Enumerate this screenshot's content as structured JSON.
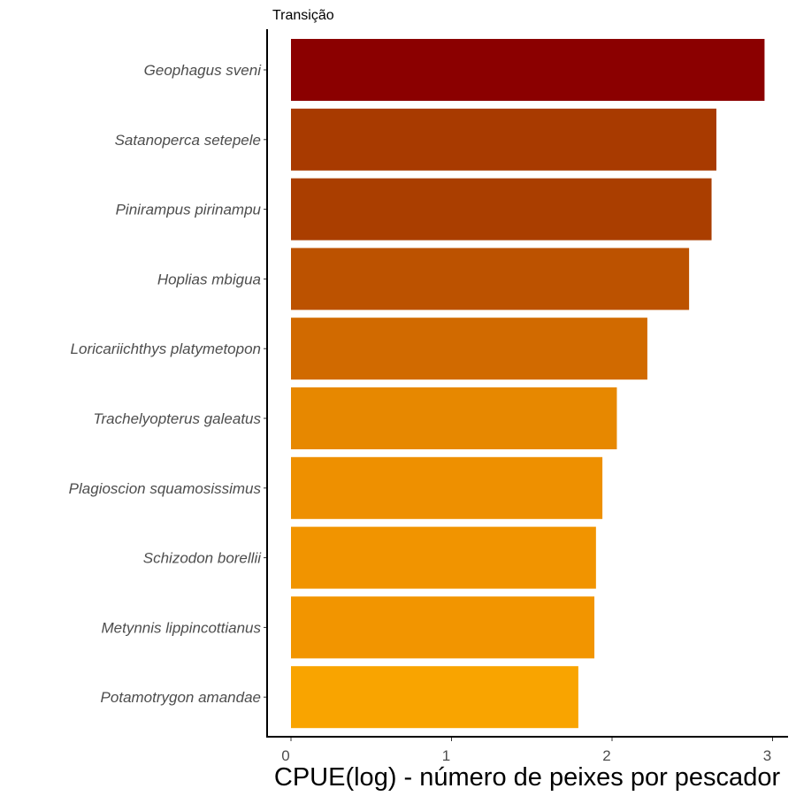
{
  "chart_data": {
    "type": "bar",
    "orientation": "horizontal",
    "title": "Transição",
    "xlabel": "CPUE(log) - número de peixes por pescador",
    "ylabel": "",
    "xlim": [
      0,
      3.05
    ],
    "xticks": [
      "0",
      "1",
      "2",
      "3"
    ],
    "grid": false,
    "legend": "none",
    "categories": [
      "Geophagus sveni",
      "Satanoperca setepele",
      "Pinirampus pirinampu",
      "Hoplias mbigua",
      "Loricariichthys platymetopon",
      "Trachelyopterus galeatus",
      "Plagioscion squamosissimus",
      "Schizodon borellii",
      "Metynnis lippincottianus",
      "Potamotrygon amandae"
    ],
    "values": [
      2.95,
      2.65,
      2.62,
      2.48,
      2.22,
      2.03,
      1.94,
      1.9,
      1.89,
      1.79
    ],
    "colors": [
      "#8B0000",
      "#A83A00",
      "#AA3E00",
      "#BC5200",
      "#D16A00",
      "#E78800",
      "#EE9000",
      "#F19400",
      "#F29500",
      "#F9A400"
    ]
  }
}
